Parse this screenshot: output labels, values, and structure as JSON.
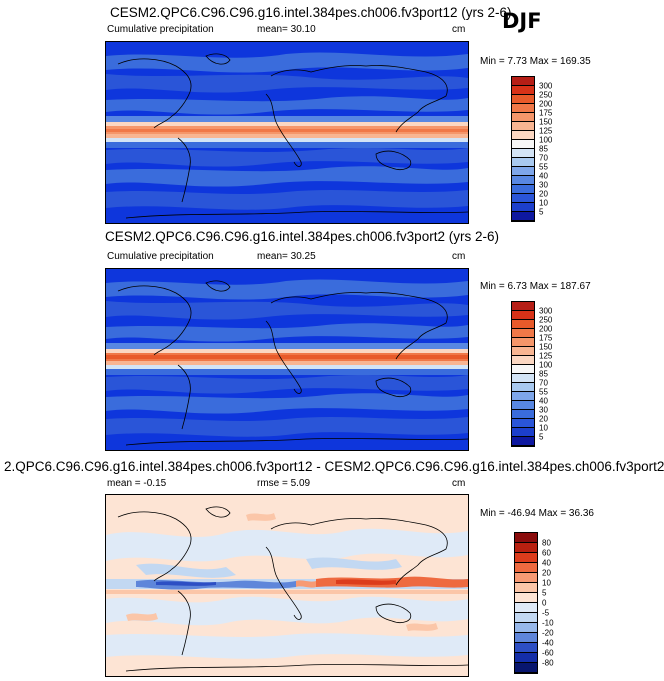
{
  "season": "DJF",
  "panels": [
    {
      "title": "CESM2.QPC6.C96.C96.g16.intel.384pes.ch006.fv3port12 (yrs 2-6)",
      "left_label": "Cumulative precipitation",
      "mean_text": "mean=  30.10",
      "units": "cm",
      "minmax": "Min =  7.73 Max = 169.35",
      "colorbar": {
        "labels": [
          "300",
          "250",
          "200",
          "175",
          "150",
          "125",
          "100",
          "85",
          "70",
          "55",
          "40",
          "30",
          "20",
          "10",
          "5"
        ],
        "colors": [
          "#b61e16",
          "#d83218",
          "#e85a2a",
          "#f07848",
          "#f5966a",
          "#f8b592",
          "#fbd7c2",
          "#f7f7f7",
          "#d3e4f6",
          "#a8c9f0",
          "#7ea6ea",
          "#5887e2",
          "#3a6cdc",
          "#2a55d8",
          "#1c3fcc",
          "#0e18a0"
        ]
      }
    },
    {
      "title": "CESM2.QPC6.C96.C96.g16.intel.384pes.ch006.fv3port2 (yrs 2-6)",
      "left_label": "Cumulative precipitation",
      "mean_text": "mean=  30.25",
      "units": "cm",
      "minmax": "Min =  6.73 Max = 187.67",
      "colorbar": {
        "labels": [
          "300",
          "250",
          "200",
          "175",
          "150",
          "125",
          "100",
          "85",
          "70",
          "55",
          "40",
          "30",
          "20",
          "10",
          "5"
        ],
        "colors": [
          "#b61e16",
          "#d83218",
          "#e85a2a",
          "#f07848",
          "#f5966a",
          "#f8b592",
          "#fbd7c2",
          "#f7f7f7",
          "#d3e4f6",
          "#a8c9f0",
          "#7ea6ea",
          "#5887e2",
          "#3a6cdc",
          "#2a55d8",
          "#1c3fcc",
          "#0e18a0"
        ]
      }
    },
    {
      "title": "2.QPC6.C96.C96.g16.intel.384pes.ch006.fv3port12 - CESM2.QPC6.C96.C96.g16.intel.384pes.ch006.fv3port2",
      "mean_text": "mean =  -0.15",
      "rmse_text": "rmse =   5.09",
      "units": "cm",
      "minmax": "Min = -46.94 Max =  36.36",
      "colorbar": {
        "labels": [
          "80",
          "60",
          "40",
          "20",
          "10",
          "5",
          "0",
          "-5",
          "-10",
          "-20",
          "-40",
          "-60",
          "-80"
        ],
        "colors": [
          "#8a0c0c",
          "#b82010",
          "#dc3c1c",
          "#ee6a40",
          "#f79a74",
          "#fbc6a8",
          "#fde4d4",
          "#dfeaf7",
          "#c2d8f2",
          "#97b8ea",
          "#5f86da",
          "#2d4fc4",
          "#142ea8",
          "#08166e"
        ]
      }
    }
  ]
}
